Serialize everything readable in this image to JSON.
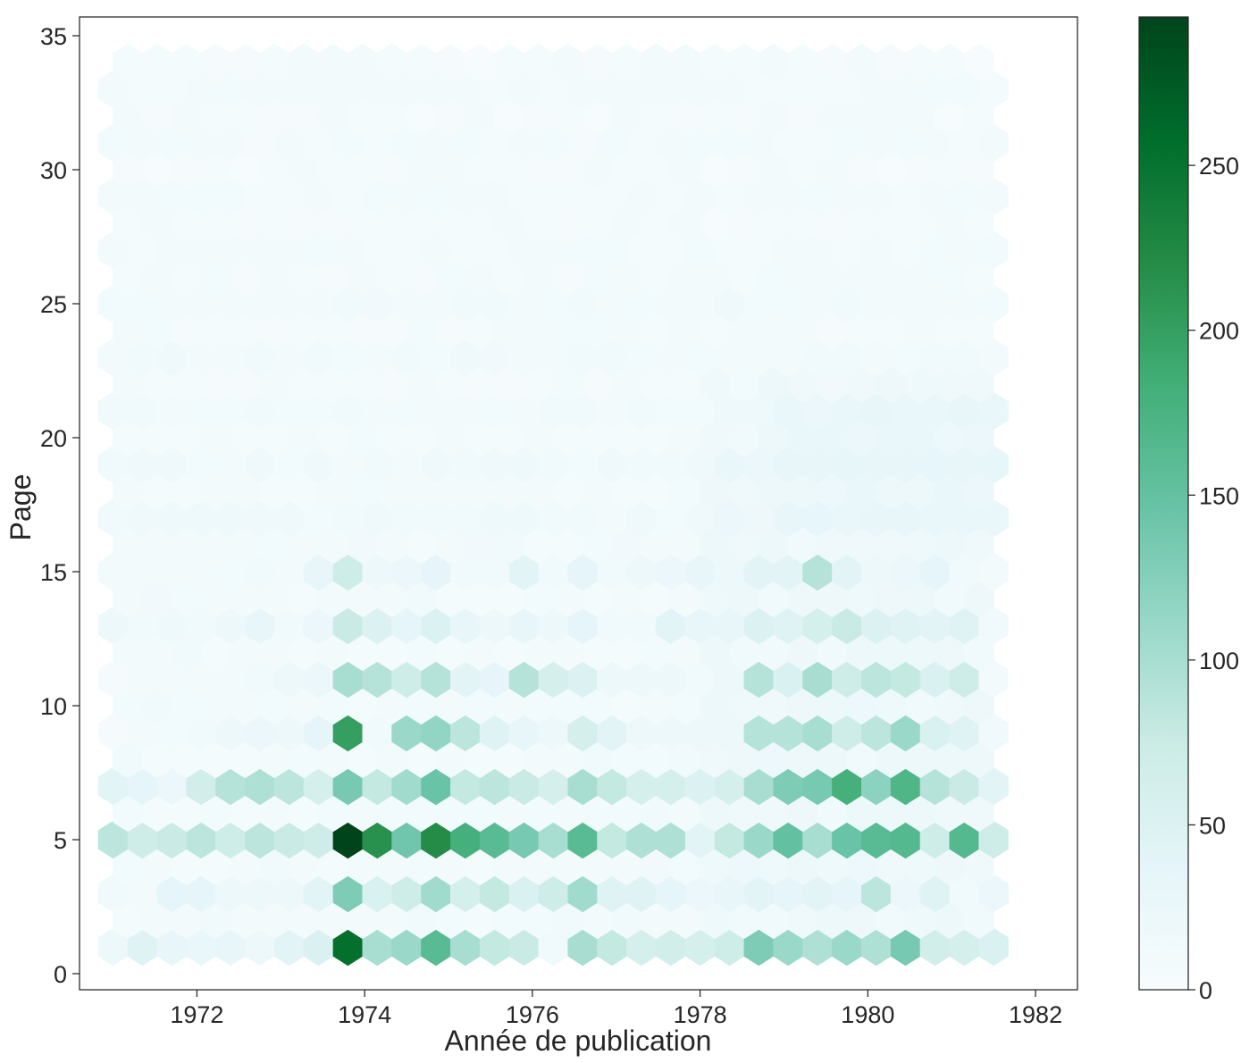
{
  "chart_data": {
    "type": "hexbin",
    "title": "",
    "xlabel": "Année de publication",
    "ylabel": "Page",
    "xlim": [
      1970.6,
      1982.5
    ],
    "ylim": [
      -0.6,
      35.7
    ],
    "x_ticks": [
      1972,
      1974,
      1976,
      1978,
      1980,
      1982
    ],
    "y_ticks": [
      0,
      5,
      10,
      15,
      20,
      25,
      30,
      35
    ],
    "grid": false,
    "colormap": "BuGn",
    "colors": {
      "low": "#f7fcfd",
      "mid": "#66c2a4",
      "high": "#00441b"
    },
    "colorbar": {
      "min": 0,
      "max": 295,
      "ticks": [
        0,
        50,
        100,
        150,
        200,
        250
      ]
    },
    "grid_cols": [
      1971.0,
      1971.35,
      1971.7,
      1972.05,
      1972.4,
      1972.75,
      1973.1,
      1973.45,
      1973.8,
      1974.15,
      1974.5,
      1974.85,
      1975.2,
      1975.55,
      1975.9,
      1976.25,
      1976.6,
      1976.95,
      1977.3,
      1977.65,
      1978.0,
      1978.35,
      1978.7,
      1979.05,
      1979.4,
      1979.75,
      1980.1,
      1980.45,
      1980.8,
      1981.15,
      1981.5,
      1981.85,
      1982.2
    ],
    "grid_rows": [
      1.0,
      2.0,
      3.0,
      4.0,
      5.0,
      6.0,
      7.0,
      8.0,
      9.0,
      10.0,
      11.0,
      12.0,
      13.0,
      14.0,
      15.0,
      16.0,
      17.0,
      18.0,
      19.0,
      20.0,
      21.0,
      22.0,
      23.0,
      24.0,
      25.0,
      26.0,
      27.0,
      28.0,
      29.0,
      30.0,
      31.0,
      32.0,
      33.0,
      34.0
    ],
    "counts_by_row": {
      "1": [
        20,
        45,
        30,
        28,
        30,
        20,
        42,
        52,
        255,
        100,
        110,
        160,
        100,
        80,
        75,
        15,
        100,
        80,
        60,
        65,
        60,
        70,
        130,
        110,
        95,
        110,
        95,
        135,
        65,
        60,
        55
      ],
      "3": [
        15,
        10,
        35,
        35,
        20,
        20,
        20,
        40,
        130,
        55,
        70,
        105,
        60,
        80,
        55,
        70,
        105,
        45,
        45,
        35,
        25,
        30,
        40,
        35,
        40,
        35,
        85,
        25,
        45,
        15,
        25
      ],
      "5": [
        85,
        70,
        75,
        85,
        70,
        85,
        75,
        70,
        295,
        215,
        140,
        220,
        180,
        160,
        135,
        100,
        160,
        80,
        95,
        95,
        40,
        80,
        110,
        150,
        100,
        145,
        160,
        165,
        70,
        165,
        70
      ],
      "7": [
        40,
        35,
        25,
        65,
        90,
        95,
        85,
        60,
        135,
        80,
        105,
        145,
        80,
        85,
        75,
        60,
        100,
        80,
        60,
        60,
        50,
        60,
        100,
        130,
        135,
        180,
        120,
        170,
        90,
        75,
        40
      ],
      "9": [
        5,
        10,
        12,
        15,
        20,
        25,
        20,
        35,
        200,
        15,
        110,
        115,
        85,
        45,
        30,
        20,
        60,
        40,
        20,
        20,
        20,
        20,
        90,
        90,
        100,
        70,
        85,
        110,
        55,
        45,
        15
      ],
      "11": [
        5,
        8,
        10,
        10,
        10,
        15,
        20,
        25,
        100,
        90,
        70,
        90,
        40,
        35,
        90,
        60,
        50,
        20,
        20,
        20,
        15,
        20,
        90,
        55,
        100,
        70,
        85,
        80,
        55,
        70,
        10
      ],
      "13": [
        20,
        15,
        18,
        15,
        20,
        30,
        15,
        25,
        75,
        50,
        35,
        50,
        30,
        20,
        30,
        20,
        35,
        15,
        15,
        40,
        30,
        30,
        50,
        45,
        60,
        75,
        50,
        45,
        40,
        45,
        15
      ],
      "15": [
        10,
        10,
        10,
        10,
        12,
        15,
        10,
        30,
        70,
        20,
        25,
        35,
        15,
        15,
        40,
        15,
        35,
        15,
        20,
        25,
        30,
        20,
        40,
        40,
        90,
        40,
        20,
        25,
        35,
        15,
        10
      ]
    }
  }
}
